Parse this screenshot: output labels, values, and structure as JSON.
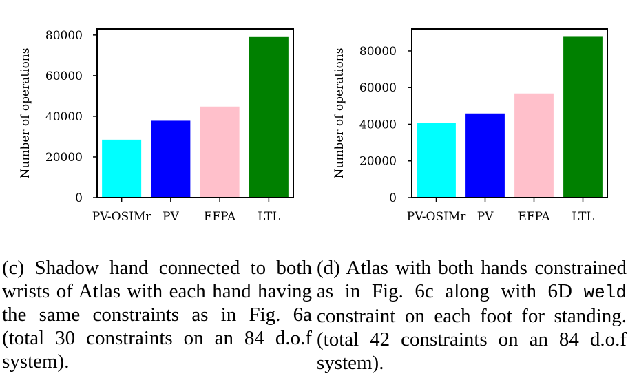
{
  "chart_data": [
    {
      "type": "bar",
      "ylabel": "Number of operations",
      "xlabel": "",
      "categories": [
        "PV-OSIMr",
        "PV",
        "EFPA",
        "LTL"
      ],
      "values": [
        28500,
        37800,
        44800,
        79000
      ],
      "colors": [
        "#00ffff",
        "#0000ff",
        "#ffc0cb",
        "#008000"
      ],
      "yticks": [
        0,
        20000,
        40000,
        60000,
        80000
      ],
      "ylim": [
        0,
        83000
      ],
      "grid": false
    },
    {
      "type": "bar",
      "ylabel": "Number of operations",
      "xlabel": "",
      "categories": [
        "PV-OSIMr",
        "PV",
        "EFPA",
        "LTL"
      ],
      "values": [
        40600,
        45900,
        56800,
        87700
      ],
      "colors": [
        "#00ffff",
        "#0000ff",
        "#ffc0cb",
        "#008000"
      ],
      "yticks": [
        0,
        20000,
        40000,
        60000,
        80000
      ],
      "ylim": [
        0,
        92000
      ],
      "grid": false
    }
  ],
  "captions": {
    "c": {
      "text": "(c) Shadow hand connected to both wrists of Atlas with each hand having the same constraints as in Fig. 6a (total 30 constraints on an 84 d.o.f system)."
    },
    "d": {
      "before": "(d) Atlas with both hands constrained as in Fig. 6c along with 6D ",
      "code": "weld",
      "after": " constraint on each foot for standing. (total 42 constraints on an 84 d.o.f system)."
    }
  }
}
